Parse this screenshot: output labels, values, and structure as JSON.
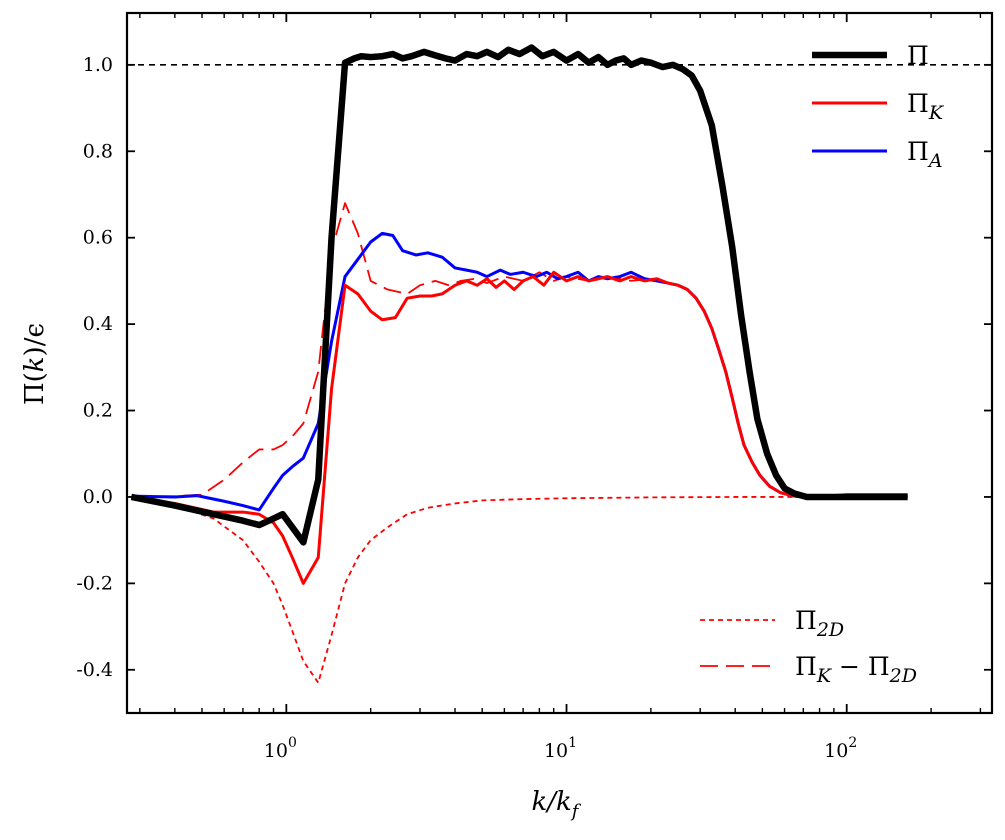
{
  "chart_data": {
    "type": "line",
    "xscale": "log",
    "xlim": [
      0.27,
      330
    ],
    "ylim": [
      -0.5,
      1.12
    ],
    "xlabel": "k/k_f",
    "ylabel": "Π(k)/ϵ",
    "xlabel_parts": {
      "main": "k/k",
      "sub": "f"
    },
    "ylabel_parts": {
      "pre": "Π(",
      "var": "k",
      "post": ")/ϵ"
    },
    "x_ticks": [
      {
        "value": 1,
        "base": "10",
        "exp": "0"
      },
      {
        "value": 10,
        "base": "10",
        "exp": "1"
      },
      {
        "value": 100,
        "base": "10",
        "exp": "2"
      }
    ],
    "y_ticks": [
      {
        "value": 1.0,
        "label": "1.0"
      },
      {
        "value": 0.8,
        "label": "0.8"
      },
      {
        "value": 0.6,
        "label": "0.6"
      },
      {
        "value": 0.4,
        "label": "0.4"
      },
      {
        "value": 0.2,
        "label": "0.2"
      },
      {
        "value": 0.0,
        "label": "0.0"
      },
      {
        "value": -0.2,
        "label": "-0.2"
      },
      {
        "value": -0.4,
        "label": "-0.4"
      }
    ],
    "reference_line": {
      "y": 1.0,
      "style": "dashed",
      "color": "#000000"
    },
    "legends": [
      {
        "position": "top-right",
        "entries": [
          {
            "series": "Pi",
            "base": "Π",
            "sub": ""
          },
          {
            "series": "Pi_K",
            "base": "Π",
            "sub": "K"
          },
          {
            "series": "Pi_A",
            "base": "Π",
            "sub": "A"
          }
        ]
      },
      {
        "position": "bottom-right",
        "entries": [
          {
            "series": "Pi_2D",
            "base": "Π",
            "sub": "2D"
          },
          {
            "series": "Pi_K_minus_Pi_2D",
            "base": "Π",
            "sub": "K",
            "mid": " − Π",
            "sub2": "2D"
          }
        ]
      }
    ],
    "series": [
      {
        "id": "Pi",
        "name": "Π",
        "color": "#000000",
        "style": "solid",
        "weight": "thick",
        "points": [
          [
            0.28,
            0.0
          ],
          [
            0.4,
            -0.02
          ],
          [
            0.55,
            -0.04
          ],
          [
            0.7,
            -0.055
          ],
          [
            0.8,
            -0.065
          ],
          [
            0.9,
            -0.05
          ],
          [
            0.97,
            -0.04
          ],
          [
            1.05,
            -0.07
          ],
          [
            1.15,
            -0.105
          ],
          [
            1.3,
            0.04
          ],
          [
            1.45,
            0.6
          ],
          [
            1.62,
            1.005
          ],
          [
            1.75,
            1.015
          ],
          [
            1.85,
            1.02
          ],
          [
            2.0,
            1.018
          ],
          [
            2.2,
            1.02
          ],
          [
            2.4,
            1.025
          ],
          [
            2.6,
            1.015
          ],
          [
            2.8,
            1.02
          ],
          [
            3.1,
            1.03
          ],
          [
            3.4,
            1.022
          ],
          [
            3.7,
            1.015
          ],
          [
            4.0,
            1.01
          ],
          [
            4.4,
            1.025
          ],
          [
            4.8,
            1.02
          ],
          [
            5.2,
            1.03
          ],
          [
            5.7,
            1.018
          ],
          [
            6.2,
            1.035
          ],
          [
            6.8,
            1.025
          ],
          [
            7.5,
            1.04
          ],
          [
            8.2,
            1.02
          ],
          [
            9.0,
            1.03
          ],
          [
            10.0,
            1.01
          ],
          [
            11,
            1.025
          ],
          [
            12,
            1.005
          ],
          [
            13,
            1.018
          ],
          [
            14,
            1.0
          ],
          [
            15,
            1.01
          ],
          [
            16,
            1.015
          ],
          [
            17,
            1.0
          ],
          [
            18.5,
            1.01
          ],
          [
            20,
            1.005
          ],
          [
            22,
            0.995
          ],
          [
            24,
            1.0
          ],
          [
            26,
            0.99
          ],
          [
            28,
            0.975
          ],
          [
            30,
            0.94
          ],
          [
            33,
            0.86
          ],
          [
            36,
            0.72
          ],
          [
            39,
            0.58
          ],
          [
            42,
            0.42
          ],
          [
            45,
            0.29
          ],
          [
            48,
            0.18
          ],
          [
            52,
            0.1
          ],
          [
            56,
            0.05
          ],
          [
            60,
            0.02
          ],
          [
            65,
            0.008
          ],
          [
            72,
            0.0
          ],
          [
            90,
            0.0
          ],
          [
            120,
            0.0
          ],
          [
            165,
            0.0
          ]
        ]
      },
      {
        "id": "Pi_K",
        "name": "Π_K",
        "color": "#ff0000",
        "style": "solid",
        "weight": "normal",
        "points": [
          [
            0.28,
            0.0
          ],
          [
            0.4,
            -0.015
          ],
          [
            0.55,
            -0.035
          ],
          [
            0.7,
            -0.035
          ],
          [
            0.8,
            -0.04
          ],
          [
            0.9,
            -0.06
          ],
          [
            0.97,
            -0.09
          ],
          [
            1.05,
            -0.14
          ],
          [
            1.15,
            -0.2
          ],
          [
            1.3,
            -0.14
          ],
          [
            1.45,
            0.25
          ],
          [
            1.62,
            0.49
          ],
          [
            1.8,
            0.47
          ],
          [
            2.0,
            0.43
          ],
          [
            2.2,
            0.41
          ],
          [
            2.45,
            0.415
          ],
          [
            2.7,
            0.46
          ],
          [
            3.0,
            0.465
          ],
          [
            3.3,
            0.465
          ],
          [
            3.6,
            0.47
          ],
          [
            4.0,
            0.49
          ],
          [
            4.4,
            0.5
          ],
          [
            4.8,
            0.49
          ],
          [
            5.2,
            0.505
          ],
          [
            5.6,
            0.485
          ],
          [
            6.0,
            0.5
          ],
          [
            6.5,
            0.48
          ],
          [
            7.0,
            0.5
          ],
          [
            7.6,
            0.51
          ],
          [
            8.3,
            0.49
          ],
          [
            9.0,
            0.52
          ],
          [
            10,
            0.5
          ],
          [
            11,
            0.51
          ],
          [
            12,
            0.5
          ],
          [
            13,
            0.505
          ],
          [
            14,
            0.51
          ],
          [
            15.5,
            0.5
          ],
          [
            17,
            0.51
          ],
          [
            19,
            0.5
          ],
          [
            21,
            0.505
          ],
          [
            23,
            0.495
          ],
          [
            25,
            0.49
          ],
          [
            27,
            0.48
          ],
          [
            29,
            0.46
          ],
          [
            31,
            0.43
          ],
          [
            33,
            0.39
          ],
          [
            35,
            0.34
          ],
          [
            37,
            0.29
          ],
          [
            39,
            0.23
          ],
          [
            41,
            0.17
          ],
          [
            43,
            0.12
          ],
          [
            46,
            0.08
          ],
          [
            49,
            0.05
          ],
          [
            53,
            0.025
          ],
          [
            58,
            0.01
          ],
          [
            65,
            0.002
          ],
          [
            75,
            0.0
          ],
          [
            100,
            0.0
          ],
          [
            165,
            0.0
          ]
        ]
      },
      {
        "id": "Pi_A",
        "name": "Π_A",
        "color": "#0000ff",
        "style": "solid",
        "weight": "normal",
        "points": [
          [
            0.28,
            0.002
          ],
          [
            0.4,
            0.0
          ],
          [
            0.48,
            0.003
          ],
          [
            0.6,
            -0.01
          ],
          [
            0.7,
            -0.02
          ],
          [
            0.8,
            -0.03
          ],
          [
            0.9,
            0.02
          ],
          [
            0.97,
            0.05
          ],
          [
            1.05,
            0.07
          ],
          [
            1.15,
            0.09
          ],
          [
            1.3,
            0.17
          ],
          [
            1.45,
            0.36
          ],
          [
            1.62,
            0.51
          ],
          [
            1.8,
            0.55
          ],
          [
            2.0,
            0.59
          ],
          [
            2.2,
            0.61
          ],
          [
            2.4,
            0.605
          ],
          [
            2.6,
            0.57
          ],
          [
            2.9,
            0.56
          ],
          [
            3.2,
            0.565
          ],
          [
            3.6,
            0.555
          ],
          [
            4.0,
            0.53
          ],
          [
            4.4,
            0.525
          ],
          [
            4.8,
            0.52
          ],
          [
            5.2,
            0.51
          ],
          [
            5.8,
            0.525
          ],
          [
            6.3,
            0.515
          ],
          [
            7.0,
            0.52
          ],
          [
            7.8,
            0.51
          ],
          [
            8.5,
            0.52
          ],
          [
            9.3,
            0.505
          ],
          [
            10,
            0.51
          ],
          [
            11,
            0.52
          ],
          [
            12,
            0.5
          ],
          [
            13,
            0.51
          ],
          [
            14,
            0.505
          ],
          [
            15.5,
            0.51
          ],
          [
            17,
            0.52
          ],
          [
            19,
            0.505
          ],
          [
            21,
            0.5
          ],
          [
            23,
            0.495
          ],
          [
            25,
            0.49
          ],
          [
            27,
            0.48
          ],
          [
            29,
            0.46
          ],
          [
            31,
            0.43
          ],
          [
            33,
            0.39
          ],
          [
            35,
            0.34
          ],
          [
            37,
            0.29
          ],
          [
            39,
            0.23
          ],
          [
            41,
            0.17
          ],
          [
            43,
            0.12
          ],
          [
            46,
            0.08
          ],
          [
            49,
            0.05
          ],
          [
            53,
            0.025
          ],
          [
            58,
            0.01
          ],
          [
            65,
            0.002
          ],
          [
            75,
            0.0
          ],
          [
            100,
            0.005
          ],
          [
            165,
            0.005
          ]
        ]
      },
      {
        "id": "Pi_2D",
        "name": "Π_2D",
        "color": "#ff0000",
        "style": "dotted",
        "weight": "thin",
        "points": [
          [
            0.28,
            0.0
          ],
          [
            0.4,
            -0.02
          ],
          [
            0.55,
            -0.05
          ],
          [
            0.7,
            -0.1
          ],
          [
            0.8,
            -0.15
          ],
          [
            0.9,
            -0.2
          ],
          [
            0.97,
            -0.25
          ],
          [
            1.05,
            -0.31
          ],
          [
            1.15,
            -0.38
          ],
          [
            1.3,
            -0.43
          ],
          [
            1.45,
            -0.32
          ],
          [
            1.62,
            -0.2
          ],
          [
            1.8,
            -0.14
          ],
          [
            2.0,
            -0.1
          ],
          [
            2.3,
            -0.07
          ],
          [
            2.7,
            -0.04
          ],
          [
            3.2,
            -0.025
          ],
          [
            4.0,
            -0.015
          ],
          [
            5.0,
            -0.008
          ],
          [
            7.0,
            -0.005
          ],
          [
            10,
            -0.003
          ],
          [
            20,
            -0.001
          ],
          [
            40,
            0.0
          ],
          [
            80,
            0.0
          ],
          [
            165,
            0.0
          ]
        ]
      },
      {
        "id": "Pi_K_minus_Pi_2D",
        "name": "Π_K − Π_2D",
        "color": "#ff0000",
        "style": "dashed",
        "weight": "thin",
        "points": [
          [
            0.28,
            0.0
          ],
          [
            0.4,
            0.002
          ],
          [
            0.5,
            0.005
          ],
          [
            0.6,
            0.04
          ],
          [
            0.7,
            0.08
          ],
          [
            0.8,
            0.11
          ],
          [
            0.9,
            0.11
          ],
          [
            0.97,
            0.12
          ],
          [
            1.05,
            0.14
          ],
          [
            1.15,
            0.17
          ],
          [
            1.3,
            0.29
          ],
          [
            1.45,
            0.57
          ],
          [
            1.62,
            0.68
          ],
          [
            1.8,
            0.61
          ],
          [
            2.0,
            0.5
          ],
          [
            2.3,
            0.48
          ],
          [
            2.7,
            0.47
          ],
          [
            3.0,
            0.49
          ],
          [
            3.4,
            0.5
          ],
          [
            3.8,
            0.49
          ],
          [
            4.2,
            0.5
          ],
          [
            4.7,
            0.505
          ],
          [
            5.2,
            0.495
          ],
          [
            6,
            0.51
          ],
          [
            7,
            0.5
          ],
          [
            8,
            0.52
          ],
          [
            9,
            0.5
          ],
          [
            10,
            0.51
          ],
          [
            12,
            0.5
          ],
          [
            14,
            0.51
          ],
          [
            17,
            0.5
          ],
          [
            20,
            0.505
          ],
          [
            23,
            0.495
          ],
          [
            25,
            0.49
          ],
          [
            27,
            0.48
          ],
          [
            29,
            0.46
          ],
          [
            31,
            0.43
          ],
          [
            33,
            0.39
          ],
          [
            35,
            0.34
          ],
          [
            37,
            0.29
          ],
          [
            39,
            0.23
          ],
          [
            41,
            0.17
          ],
          [
            43,
            0.12
          ],
          [
            46,
            0.08
          ],
          [
            49,
            0.05
          ],
          [
            53,
            0.025
          ],
          [
            58,
            0.01
          ],
          [
            65,
            0.002
          ],
          [
            75,
            0.0
          ],
          [
            100,
            0.0
          ],
          [
            165,
            0.0
          ]
        ]
      }
    ]
  }
}
